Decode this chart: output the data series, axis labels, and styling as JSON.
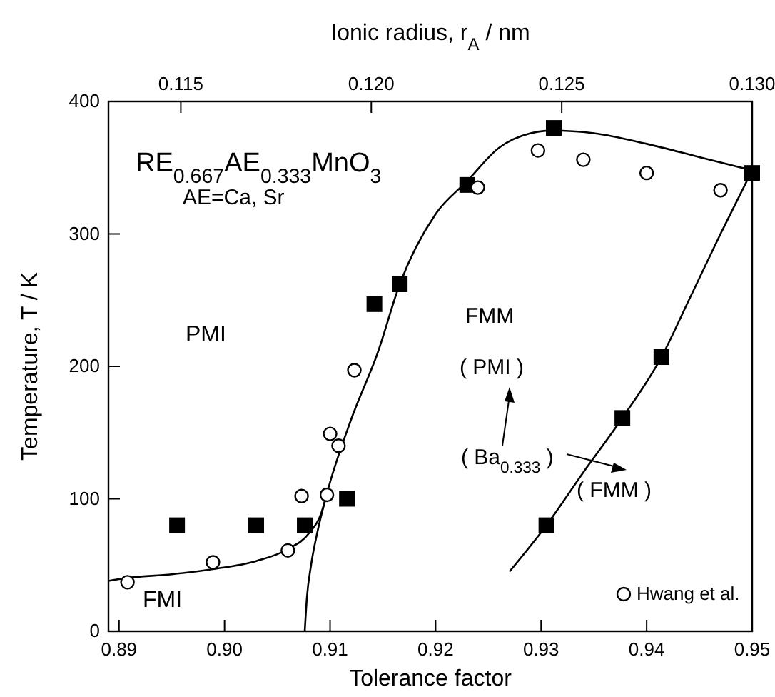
{
  "chart_data": {
    "type": "scatter",
    "xlabel": "Tolerance factor",
    "ylabel": "Temperature, T / K",
    "x2label": "Ionic radius, r$_{A}$ / nm",
    "xlim": [
      0.889,
      0.95
    ],
    "xticks": [
      0.89,
      {
        "value": 0.9,
        "label": "0.90"
      },
      0.91,
      0.92,
      0.93,
      0.94,
      0.95
    ],
    "ylim": [
      0,
      400
    ],
    "yticks": [
      0,
      100,
      200,
      300,
      400
    ],
    "x2lim": [
      0.1131,
      0.13
    ],
    "x2ticks": [
      0.115,
      {
        "value": 0.12,
        "label": "0.120"
      },
      0.125,
      {
        "value": 0.13,
        "label": "0.130"
      }
    ],
    "legend": "bottom right",
    "grid": false,
    "series": [
      {
        "type": "line",
        "color": "#000000",
        "marker": "none",
        "x": [
          0.889,
          0.8905,
          0.895,
          0.899,
          0.903,
          0.906,
          0.908,
          0.9092,
          0.9097
        ],
        "values": [
          38,
          40,
          43,
          47,
          53,
          62,
          74,
          90,
          104
        ]
      },
      {
        "type": "line",
        "color": "#000000",
        "marker": "none",
        "x": [
          0.9076,
          0.9078,
          0.9082,
          0.9088,
          0.9097,
          0.912,
          0.9145,
          0.9166,
          0.92,
          0.923,
          0.926,
          0.929,
          0.931,
          0.935,
          0.94,
          0.945,
          0.95
        ],
        "values": [
          0,
          25,
          50,
          75,
          104,
          160,
          210,
          262,
          315,
          340,
          365,
          376,
          378,
          376,
          368,
          358,
          348
        ]
      },
      {
        "type": "line",
        "color": "#000000",
        "marker": "none",
        "x": [
          0.927,
          0.9305,
          0.934,
          0.9377,
          0.9414,
          0.944,
          0.947,
          0.95
        ],
        "values": [
          45,
          80,
          120,
          161,
          207,
          250,
          300,
          348
        ]
      },
      {
        "color": "#000000",
        "marker": "square",
        "x": [
          0.8955,
          0.903,
          0.9076,
          0.9116,
          0.9142,
          0.9166,
          0.923,
          0.9312,
          0.95,
          0.9305,
          0.9377,
          0.9414
        ],
        "values": [
          80,
          80,
          80,
          100,
          247,
          262,
          337,
          380,
          346,
          80,
          161,
          207
        ]
      },
      {
        "name": "Hwang et al.",
        "color": "#000000",
        "marker": "circle",
        "x": [
          0.8908,
          0.8989,
          0.906,
          0.9073,
          0.9097,
          0.91,
          0.9108,
          0.9123,
          0.924,
          0.9297,
          0.934,
          0.94,
          0.947
        ],
        "values": [
          37,
          52,
          61,
          102,
          103,
          149,
          140,
          197,
          335,
          363,
          356,
          346,
          333
        ]
      }
    ],
    "annotations": [
      "RE$_{0.667}$AE$_{0.333}$MnO$_{3}$",
      "AE=Ca, Sr",
      "PMI",
      "FMI",
      "FMM",
      "( PMI )",
      "( Ba$_{0.333}$ )",
      "( FMM )"
    ]
  }
}
